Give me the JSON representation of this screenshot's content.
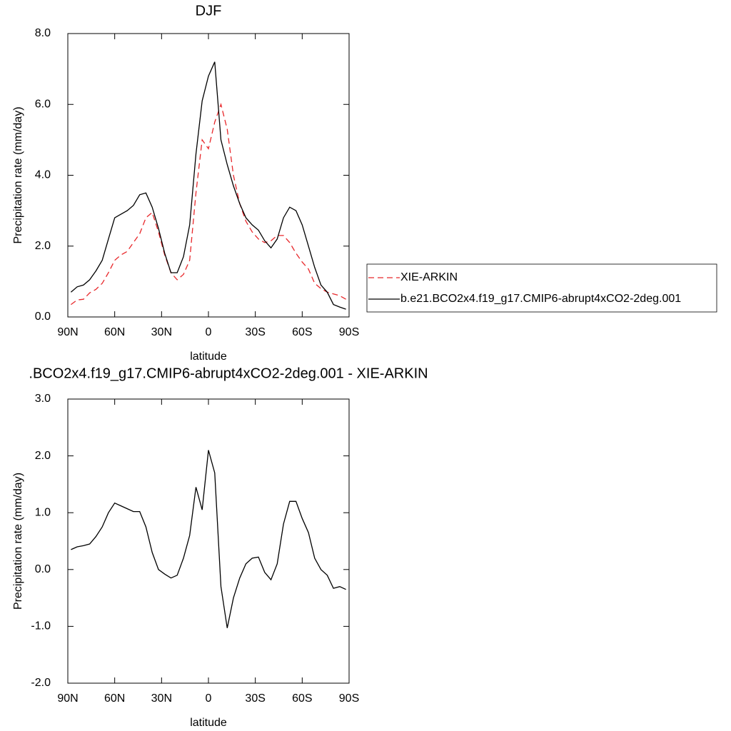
{
  "chart_data": [
    {
      "type": "line",
      "title": "DJF",
      "xlabel": "latitude",
      "ylabel": "Precipitation rate (mm/day)",
      "x": [
        88,
        84,
        80,
        76,
        72,
        68,
        64,
        60,
        56,
        52,
        48,
        44,
        40,
        36,
        32,
        28,
        24,
        20,
        16,
        12,
        8,
        4,
        0,
        -4,
        -8,
        -12,
        -16,
        -20,
        -24,
        -28,
        -32,
        -36,
        -40,
        -44,
        -48,
        -52,
        -56,
        -60,
        -64,
        -68,
        -72,
        -76,
        -80,
        -84,
        -88
      ],
      "series": [
        {
          "name": "XIE-ARKIN",
          "color": "#e8282b",
          "dash": true,
          "values": [
            0.35,
            0.48,
            0.5,
            0.68,
            0.78,
            0.95,
            1.25,
            1.6,
            1.75,
            1.85,
            2.1,
            2.35,
            2.8,
            2.95,
            2.4,
            1.75,
            1.25,
            1.05,
            1.2,
            1.6,
            3.5,
            5.0,
            4.75,
            5.5,
            6.0,
            5.3,
            4.0,
            3.2,
            2.7,
            2.4,
            2.2,
            2.1,
            2.15,
            2.3,
            2.3,
            2.1,
            1.8,
            1.55,
            1.35,
            0.95,
            0.8,
            0.7,
            0.65,
            0.6,
            0.5
          ]
        },
        {
          "name": "b.e21.BCO2x4.f19_g17.CMIP6-abrupt4xCO2-2deg.001",
          "color": "#000000",
          "dash": false,
          "values": [
            0.7,
            0.85,
            0.9,
            1.05,
            1.3,
            1.6,
            2.2,
            2.8,
            2.9,
            3.0,
            3.15,
            3.45,
            3.5,
            3.1,
            2.5,
            1.8,
            1.25,
            1.25,
            1.7,
            2.6,
            4.6,
            6.1,
            6.8,
            7.2,
            5.0,
            4.3,
            3.7,
            3.2,
            2.8,
            2.6,
            2.45,
            2.15,
            1.95,
            2.2,
            2.8,
            3.1,
            3.0,
            2.6,
            2.0,
            1.4,
            0.9,
            0.7,
            0.35,
            0.28,
            0.22
          ]
        }
      ],
      "xlim": [
        90,
        -90
      ],
      "xticks": [
        {
          "value": 90,
          "label": "90N"
        },
        {
          "value": 60,
          "label": "60N"
        },
        {
          "value": 30,
          "label": "30N"
        },
        0,
        {
          "value": -30,
          "label": "30S"
        },
        {
          "value": -60,
          "label": "60S"
        },
        {
          "value": -90,
          "label": "90S"
        }
      ],
      "ylim": [
        0,
        8
      ],
      "yticks": [
        {
          "value": 0,
          "label": "0.0"
        },
        {
          "value": 2,
          "label": "2.0"
        },
        {
          "value": 4,
          "label": "4.0"
        },
        {
          "value": 6,
          "label": "6.0"
        },
        {
          "value": 8,
          "label": "8.0"
        }
      ],
      "legend": "right"
    },
    {
      "type": "line",
      "title": ".BCO2x4.f19_g17.CMIP6-abrupt4xCO2-2deg.001 - XIE-ARKIN",
      "xlabel": "latitude",
      "ylabel": "Precipitation rate (mm/day)",
      "x": [
        88,
        84,
        80,
        76,
        72,
        68,
        64,
        60,
        56,
        52,
        48,
        44,
        40,
        36,
        32,
        28,
        24,
        20,
        16,
        12,
        8,
        4,
        0,
        -4,
        -8,
        -12,
        -16,
        -20,
        -24,
        -28,
        -32,
        -36,
        -40,
        -44,
        -48,
        -52,
        -56,
        -60,
        -64,
        -68,
        -72,
        -76,
        -80,
        -84,
        -88
      ],
      "series": [
        {
          "color": "#000000",
          "dash": false,
          "values": [
            0.35,
            0.4,
            0.42,
            0.45,
            0.58,
            0.75,
            1.0,
            1.17,
            1.12,
            1.07,
            1.02,
            1.02,
            0.75,
            0.3,
            0.0,
            -0.08,
            -0.15,
            -0.1,
            0.2,
            0.6,
            1.45,
            1.05,
            2.1,
            1.7,
            -0.3,
            -1.03,
            -0.5,
            -0.15,
            0.1,
            0.2,
            0.22,
            -0.05,
            -0.18,
            0.1,
            0.8,
            1.2,
            1.2,
            0.9,
            0.65,
            0.2,
            0.0,
            -0.1,
            -0.33,
            -0.3,
            -0.35
          ]
        }
      ],
      "xlim": [
        90,
        -90
      ],
      "xticks": [
        {
          "value": 90,
          "label": "90N"
        },
        {
          "value": 60,
          "label": "60N"
        },
        {
          "value": 30,
          "label": "30N"
        },
        0,
        {
          "value": -30,
          "label": "30S"
        },
        {
          "value": -60,
          "label": "60S"
        },
        {
          "value": -90,
          "label": "90S"
        }
      ],
      "ylim": [
        -2,
        3
      ],
      "yticks": [
        {
          "value": -2,
          "label": "-2.0"
        },
        {
          "value": -1,
          "label": "-1.0"
        },
        {
          "value": 0,
          "label": "0.0"
        },
        {
          "value": 1,
          "label": "1.0"
        },
        {
          "value": 2,
          "label": "2.0"
        },
        {
          "value": 3,
          "label": "3.0"
        }
      ]
    }
  ]
}
